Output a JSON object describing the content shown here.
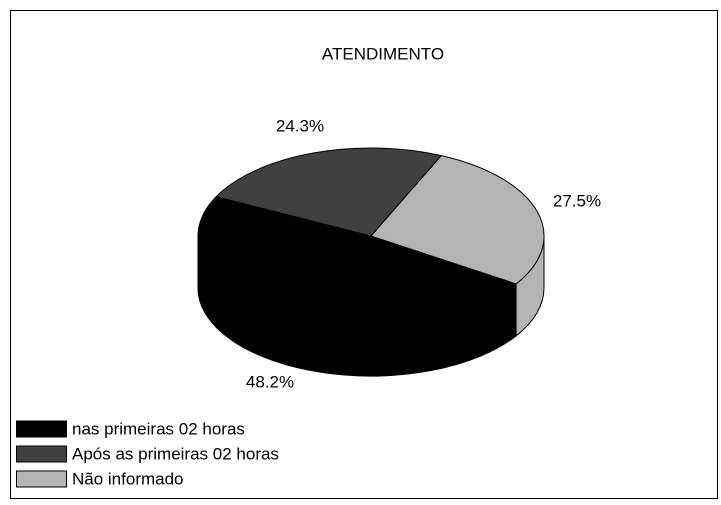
{
  "chart_data": {
    "type": "pie",
    "title": "ATENDIMENTO",
    "categories": [
      "nas primeiras 02 horas",
      "Após as primeiras 02 horas",
      "Não informado"
    ],
    "values": [
      48.2,
      24.3,
      27.5
    ],
    "value_labels": [
      "48.2%",
      "24.3%",
      "27.5%"
    ],
    "colors": [
      "#000000",
      "#404040",
      "#b4b4b4"
    ],
    "legend": "bottom-left"
  }
}
